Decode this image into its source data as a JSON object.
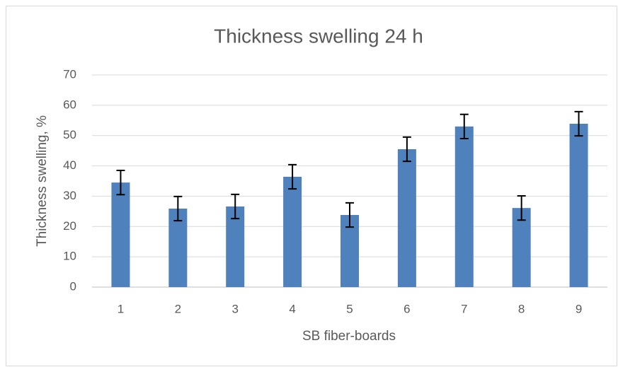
{
  "chart_data": {
    "type": "bar",
    "title": "Thickness swelling 24 h",
    "x_label": "SB fiber-boards",
    "y_label": "Thickness swelling, %",
    "categories": [
      "1",
      "2",
      "3",
      "4",
      "5",
      "6",
      "7",
      "8",
      "9"
    ],
    "values": [
      34.5,
      25.9,
      26.6,
      36.4,
      23.8,
      45.5,
      53,
      26.1,
      53.9
    ],
    "errors": [
      4,
      4,
      4,
      4,
      4,
      4,
      4,
      4,
      4
    ],
    "color": "#4f81bd",
    "ylim": [
      0,
      70
    ],
    "yticks": [
      0,
      10,
      20,
      30,
      40,
      50,
      60,
      70
    ],
    "grid": true
  }
}
